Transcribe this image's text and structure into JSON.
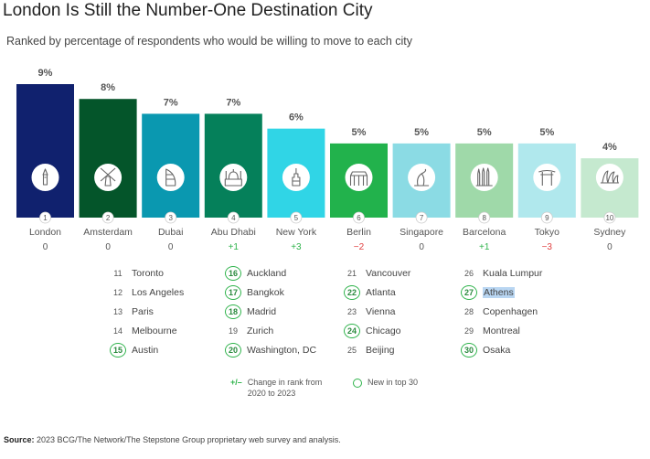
{
  "title": "London Is Still the Number-One Destination City",
  "subtitle": "Ranked by percentage of respondents who would be willing to move to each city",
  "chart_data": {
    "type": "bar",
    "title": "London Is Still the Number-One Destination City",
    "subtitle": "Ranked by percentage of respondents who would be willing to move to each city",
    "value_unit": "%",
    "ylim": [
      0,
      9
    ],
    "grid": false,
    "bars": [
      {
        "rank": "1",
        "city": "London",
        "value": 9,
        "label": "9%",
        "change": "0",
        "color": "#10216e",
        "icon": "big-ben-icon"
      },
      {
        "rank": "2",
        "city": "Amsterdam",
        "value": 8,
        "label": "8%",
        "change": "0",
        "color": "#04552a",
        "icon": "windmill-icon"
      },
      {
        "rank": "3",
        "city": "Dubai",
        "value": 7,
        "label": "7%",
        "change": "0",
        "color": "#0a98b0",
        "icon": "burj-al-arab-icon"
      },
      {
        "rank": "4",
        "city": "Abu Dhabi",
        "value": 7,
        "label": "7%",
        "change": "+1",
        "color": "#05805a",
        "icon": "mosque-icon"
      },
      {
        "rank": "5",
        "city": "New York",
        "value": 6,
        "label": "6%",
        "change": "+3",
        "color": "#30d5e6",
        "icon": "empire-state-icon"
      },
      {
        "rank": "6",
        "city": "Berlin",
        "value": 5,
        "label": "5%",
        "change": "−2",
        "color": "#22b24c",
        "icon": "brandenburg-gate-icon"
      },
      {
        "rank": "7",
        "city": "Singapore",
        "value": 5,
        "label": "5%",
        "change": "0",
        "color": "#8bdbe4",
        "icon": "merlion-icon"
      },
      {
        "rank": "8",
        "city": "Barcelona",
        "value": 5,
        "label": "5%",
        "change": "+1",
        "color": "#9fd9a9",
        "icon": "sagrada-familia-icon"
      },
      {
        "rank": "9",
        "city": "Tokyo",
        "value": 5,
        "label": "5%",
        "change": "−3",
        "color": "#b0e8ed",
        "icon": "torii-gate-icon"
      },
      {
        "rank": "10",
        "city": "Sydney",
        "value": 4,
        "label": "4%",
        "change": "0",
        "color": "#c5e9cf",
        "icon": "opera-house-icon"
      }
    ],
    "change_colors": {
      "up": "#2db34a",
      "down": "#e04040",
      "same": "#555555"
    }
  },
  "ranked_list": [
    [
      {
        "rank": "11",
        "city": "Toronto",
        "new": false
      },
      {
        "rank": "12",
        "city": "Los Angeles",
        "new": false
      },
      {
        "rank": "13",
        "city": "Paris",
        "new": false
      },
      {
        "rank": "14",
        "city": "Melbourne",
        "new": false
      },
      {
        "rank": "15",
        "city": "Austin",
        "new": true
      }
    ],
    [
      {
        "rank": "16",
        "city": "Auckland",
        "new": true
      },
      {
        "rank": "17",
        "city": "Bangkok",
        "new": true
      },
      {
        "rank": "18",
        "city": "Madrid",
        "new": true
      },
      {
        "rank": "19",
        "city": "Zurich",
        "new": false
      },
      {
        "rank": "20",
        "city": "Washington, DC",
        "new": true
      }
    ],
    [
      {
        "rank": "21",
        "city": "Vancouver",
        "new": false
      },
      {
        "rank": "22",
        "city": "Atlanta",
        "new": true
      },
      {
        "rank": "23",
        "city": "Vienna",
        "new": false
      },
      {
        "rank": "24",
        "city": "Chicago",
        "new": true
      },
      {
        "rank": "25",
        "city": "Beijing",
        "new": false
      }
    ],
    [
      {
        "rank": "26",
        "city": "Kuala Lumpur",
        "new": false
      },
      {
        "rank": "27",
        "city": "Athens",
        "new": true,
        "highlighted": true
      },
      {
        "rank": "28",
        "city": "Copenhagen",
        "new": false
      },
      {
        "rank": "29",
        "city": "Montreal",
        "new": false
      },
      {
        "rank": "30",
        "city": "Osaka",
        "new": true
      }
    ]
  ],
  "legend": {
    "change_symbol": "+/–",
    "change_text_1": "Change in rank from",
    "change_text_2": "2020 to 2023",
    "new_text": "New in top 30"
  },
  "source": {
    "label": "Source:",
    "text": "2023 BCG/The Network/The Stepstone Group proprietary web survey and analysis."
  }
}
